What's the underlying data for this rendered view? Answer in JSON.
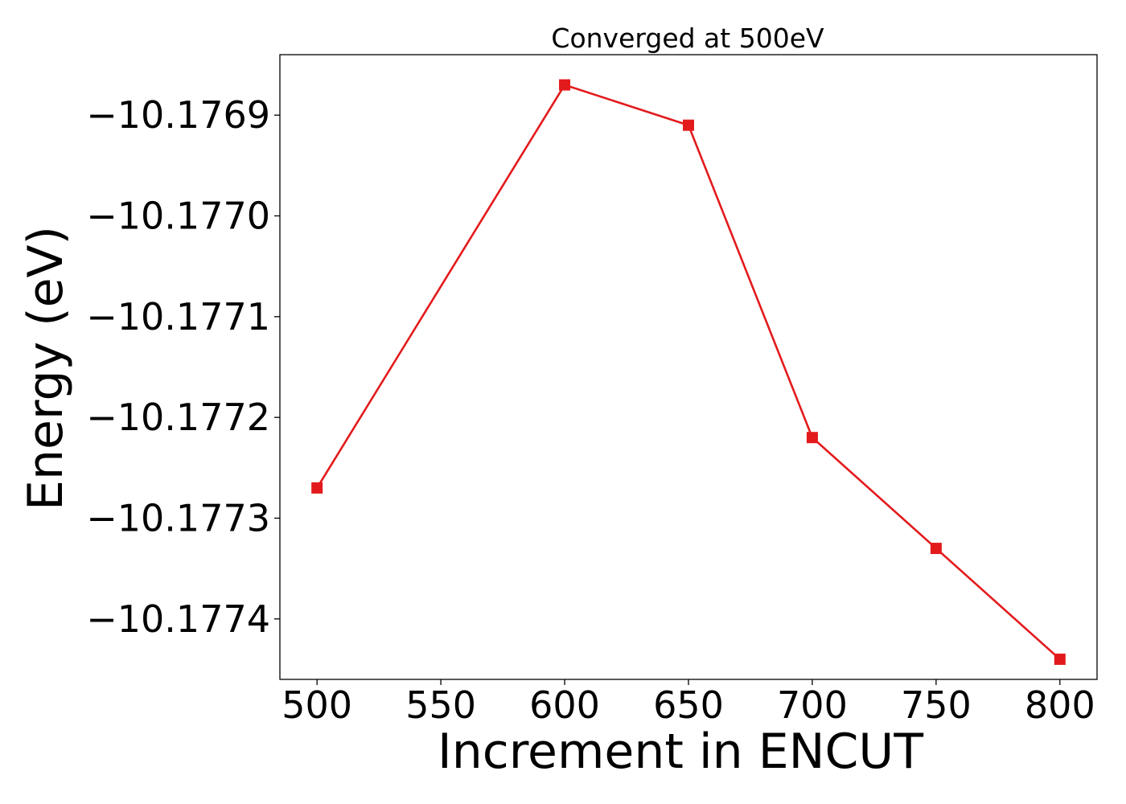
{
  "chart_data": {
    "type": "line",
    "title": "Converged at 500eV",
    "xlabel": "Increment in ENCUT",
    "ylabel": "Energy (eV)",
    "x": [
      500,
      600,
      650,
      700,
      750,
      800
    ],
    "series": [
      {
        "values": [
          -10.17727,
          -10.17687,
          -10.17691,
          -10.17722,
          -10.17733,
          -10.17744
        ],
        "color": "#e31a1c",
        "marker": "square"
      }
    ],
    "xticks": [
      500,
      550,
      600,
      650,
      700,
      750,
      800
    ],
    "xtick_labels": [
      "500",
      "550",
      "600",
      "650",
      "700",
      "750",
      "800"
    ],
    "yticks": [
      -10.1769,
      -10.177,
      -10.1771,
      -10.1772,
      -10.1773,
      -10.1774
    ],
    "ytick_labels": [
      "−10.1769",
      "−10.1770",
      "−10.1771",
      "−10.1772",
      "−10.1773",
      "−10.1774"
    ],
    "xlim": [
      485,
      815
    ],
    "ylim": [
      -10.17746,
      -10.17684
    ],
    "grid": false,
    "legend": false
  }
}
